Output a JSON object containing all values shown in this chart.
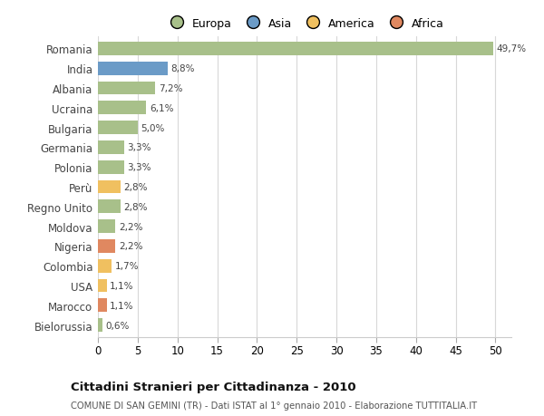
{
  "categories": [
    "Romania",
    "India",
    "Albania",
    "Ucraina",
    "Bulgaria",
    "Germania",
    "Polonia",
    "Perù",
    "Regno Unito",
    "Moldova",
    "Nigeria",
    "Colombia",
    "USA",
    "Marocco",
    "Bielorussia"
  ],
  "values": [
    49.7,
    8.8,
    7.2,
    6.1,
    5.0,
    3.3,
    3.3,
    2.8,
    2.8,
    2.2,
    2.2,
    1.7,
    1.1,
    1.1,
    0.6
  ],
  "labels": [
    "49,7%",
    "8,8%",
    "7,2%",
    "6,1%",
    "5,0%",
    "3,3%",
    "3,3%",
    "2,8%",
    "2,8%",
    "2,2%",
    "2,2%",
    "1,7%",
    "1,1%",
    "1,1%",
    "0,6%"
  ],
  "continents": [
    "Europa",
    "Asia",
    "Europa",
    "Europa",
    "Europa",
    "Europa",
    "Europa",
    "America",
    "Europa",
    "Europa",
    "Africa",
    "America",
    "America",
    "Africa",
    "Europa"
  ],
  "colors": {
    "Europa": "#a8c08a",
    "Asia": "#6b9bc7",
    "America": "#f0c060",
    "Africa": "#e08860"
  },
  "legend_order": [
    "Europa",
    "Asia",
    "America",
    "Africa"
  ],
  "xlim": [
    0,
    52
  ],
  "xticks": [
    0,
    5,
    10,
    15,
    20,
    25,
    30,
    35,
    40,
    45,
    50
  ],
  "title": "Cittadini Stranieri per Cittadinanza - 2010",
  "subtitle": "COMUNE DI SAN GEMINI (TR) - Dati ISTAT al 1° gennaio 2010 - Elaborazione TUTTITALIA.IT",
  "background_color": "#ffffff",
  "grid_color": "#d8d8d8",
  "bar_height": 0.68
}
